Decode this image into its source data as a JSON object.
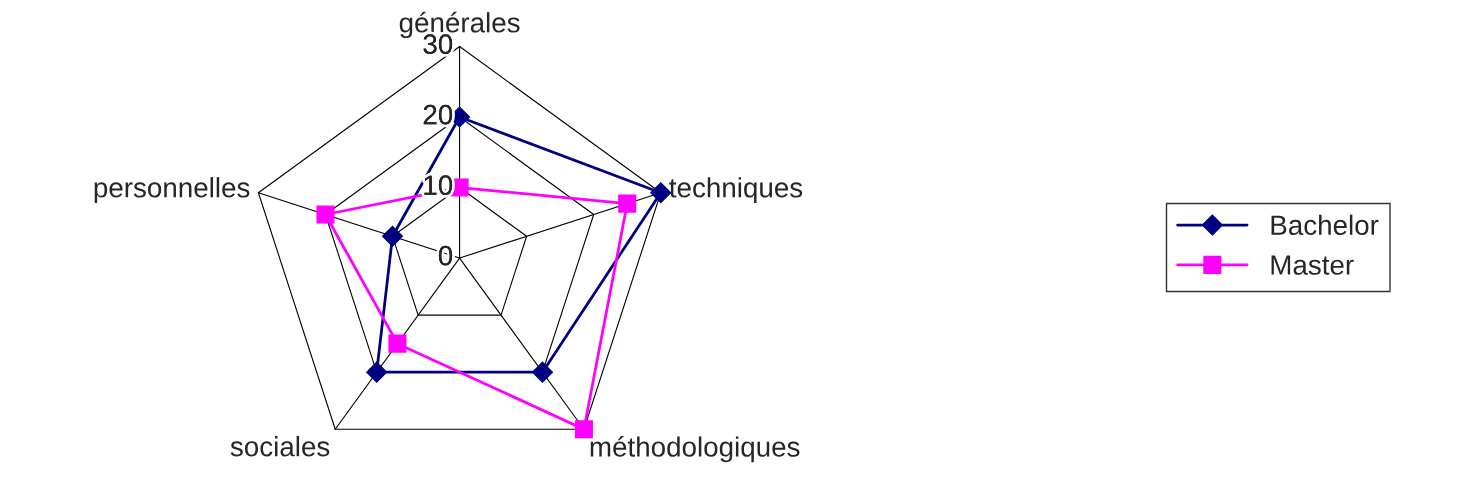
{
  "chart_data": {
    "type": "radar",
    "categories": [
      "générales",
      "techniques",
      "méthodologiques",
      "sociales",
      "personnelles"
    ],
    "series": [
      {
        "name": "Bachelor",
        "color": "#000080",
        "marker": "diamond",
        "values": [
          20,
          30,
          20,
          20,
          10
        ]
      },
      {
        "name": "Master",
        "color": "#ff00ff",
        "marker": "square",
        "values": [
          10,
          25,
          30,
          15,
          20
        ]
      }
    ],
    "ylim": [
      0,
      30
    ],
    "yticks": [
      0,
      10,
      20,
      30
    ],
    "grid": true,
    "legend": "right",
    "line_style": "solid"
  }
}
